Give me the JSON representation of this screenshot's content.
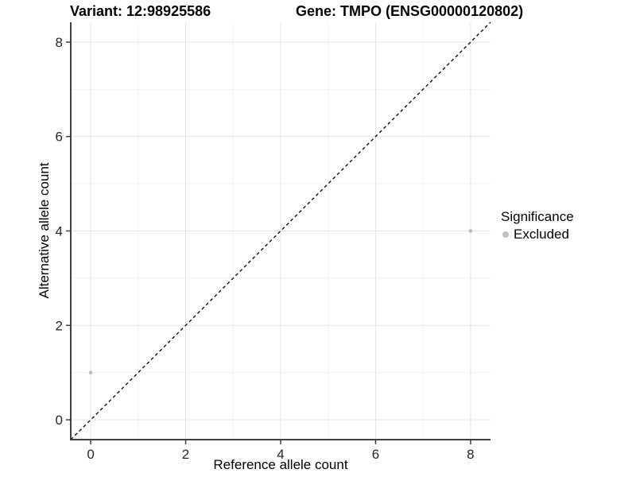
{
  "header": {
    "variant_title": "Variant: 12:98925586",
    "gene_title": "Gene: TMPO (ENSG00000120802)"
  },
  "chart_data": {
    "type": "scatter",
    "xlabel": "Reference allele count",
    "ylabel": "Alternative allele count",
    "xlim": [
      -0.42,
      8.42
    ],
    "ylim": [
      -0.42,
      8.42
    ],
    "xticks": [
      0,
      2,
      4,
      6,
      8
    ],
    "yticks": [
      0,
      2,
      4,
      6,
      8
    ],
    "minor_xticks": [
      1,
      3,
      5,
      7
    ],
    "minor_yticks": [
      1,
      3,
      5,
      7
    ],
    "grid": "major-and-minor",
    "points": [
      {
        "x": 0,
        "y": 1,
        "series": "Excluded"
      },
      {
        "x": 8,
        "y": 4,
        "series": "Excluded"
      }
    ],
    "reference_line": {
      "slope": 1,
      "intercept": 0,
      "style": "dashed",
      "color": "#000000"
    },
    "legend": {
      "title": "Significance",
      "position": "right",
      "items": [
        {
          "label": "Excluded",
          "color": "#bfbfbf"
        }
      ]
    }
  },
  "colors": {
    "point": "#bfbfbf",
    "grid_major": "#e4e4e4",
    "grid_minor": "#f3f3f3",
    "axis_line": "#404040",
    "tick_mark": "#404040",
    "tick_label": "#262626",
    "background": "#ffffff"
  }
}
